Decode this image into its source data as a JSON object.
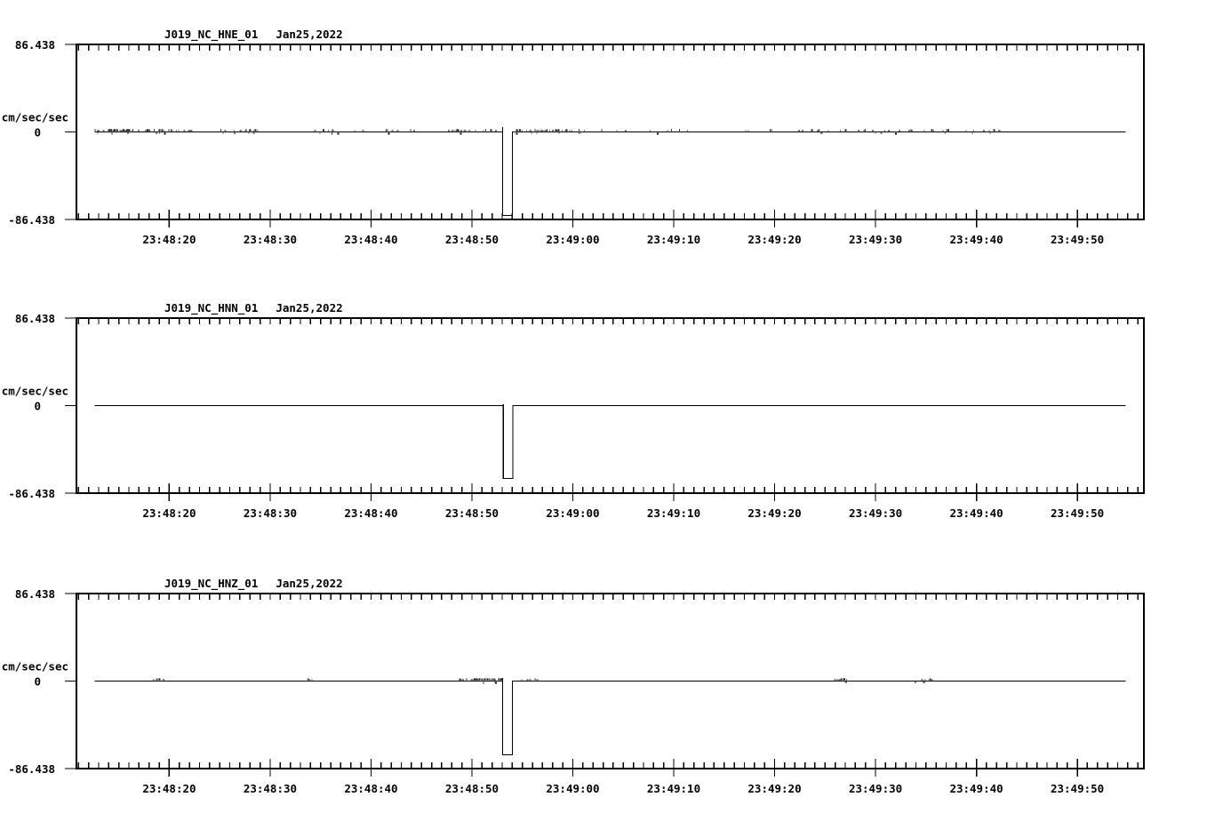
{
  "app": {
    "background_color": "#ffffff",
    "ink_color": "#000000",
    "description": "Three-panel seismic waveform (acceleration) viewer"
  },
  "chart_data": {
    "type": "line",
    "kind": "seismogram-multipanel",
    "grid": false,
    "legend": "none",
    "ylim": [
      -86.438,
      86.438
    ],
    "y_tick_labels": {
      "max": "86.438",
      "zero": "0",
      "min": "-86.438"
    },
    "y_units_label": "cm/sec/sec",
    "time_base": "23:48:00",
    "x_start_s": 10.8,
    "x_end_s": 116.6,
    "minor_tick_step_s": 1,
    "trace_start_s": 12.6,
    "trace_end_s": 114.8,
    "major_ticks": [
      {
        "s": 20,
        "label": "23:48:20"
      },
      {
        "s": 30,
        "label": "23:48:30"
      },
      {
        "s": 40,
        "label": "23:48:40"
      },
      {
        "s": 50,
        "label": "23:48:50"
      },
      {
        "s": 60,
        "label": "23:49:00"
      },
      {
        "s": 70,
        "label": "23:49:10"
      },
      {
        "s": 80,
        "label": "23:49:20"
      },
      {
        "s": 90,
        "label": "23:49:30"
      },
      {
        "s": 100,
        "label": "23:49:40"
      },
      {
        "s": 110,
        "label": "23:49:50"
      }
    ],
    "panels": [
      {
        "station": "J019_NC_HNE_01",
        "date": "Jan25,2022",
        "baseline_value": 0,
        "pulse": {
          "start_s": 53.05,
          "end_s": 54.02,
          "min_value": -82.5,
          "pre_spike_value": 4.8
        },
        "noise_seed": 11,
        "noise_clusters": [
          {
            "t0": 12.6,
            "t1": 17.0,
            "count": 45
          },
          {
            "t0": 17.3,
            "t1": 22.3,
            "count": 26
          },
          {
            "t0": 25.0,
            "t1": 29.7,
            "count": 18
          },
          {
            "t0": 34.0,
            "t1": 39.6,
            "count": 10
          },
          {
            "t0": 41.4,
            "t1": 44.3,
            "count": 8
          },
          {
            "t0": 47.6,
            "t1": 52.8,
            "count": 20
          },
          {
            "t0": 54.3,
            "t1": 61.9,
            "count": 38
          },
          {
            "t0": 62.0,
            "t1": 72.0,
            "count": 9
          },
          {
            "t0": 76.0,
            "t1": 80.0,
            "count": 4
          },
          {
            "t0": 82.0,
            "t1": 97.2,
            "count": 32
          },
          {
            "t0": 98.7,
            "t1": 102.4,
            "count": 10
          }
        ]
      },
      {
        "station": "J019_NC_HNN_01",
        "date": "Jan25,2022",
        "baseline_value": 0,
        "pulse": {
          "start_s": 53.1,
          "end_s": 54.05,
          "min_value": -72.0,
          "pre_spike_value": 1.2
        },
        "noise_seed": 22,
        "noise_clusters": []
      },
      {
        "station": "J019_NC_HNZ_01",
        "date": "Jan25,2022",
        "baseline_value": 0,
        "pulse": {
          "start_s": 53.05,
          "end_s": 54.0,
          "min_value": -72.8,
          "pre_spike_value": 3.0
        },
        "noise_seed": 33,
        "noise_clusters": [
          {
            "t0": 18.0,
            "t1": 19.7,
            "count": 9
          },
          {
            "t0": 33.2,
            "t1": 34.2,
            "count": 3
          },
          {
            "t0": 48.5,
            "t1": 52.8,
            "count": 32
          },
          {
            "t0": 54.6,
            "t1": 56.6,
            "count": 7
          },
          {
            "t0": 85.7,
            "t1": 87.6,
            "count": 11
          },
          {
            "t0": 93.6,
            "t1": 95.6,
            "count": 9
          }
        ]
      }
    ]
  }
}
